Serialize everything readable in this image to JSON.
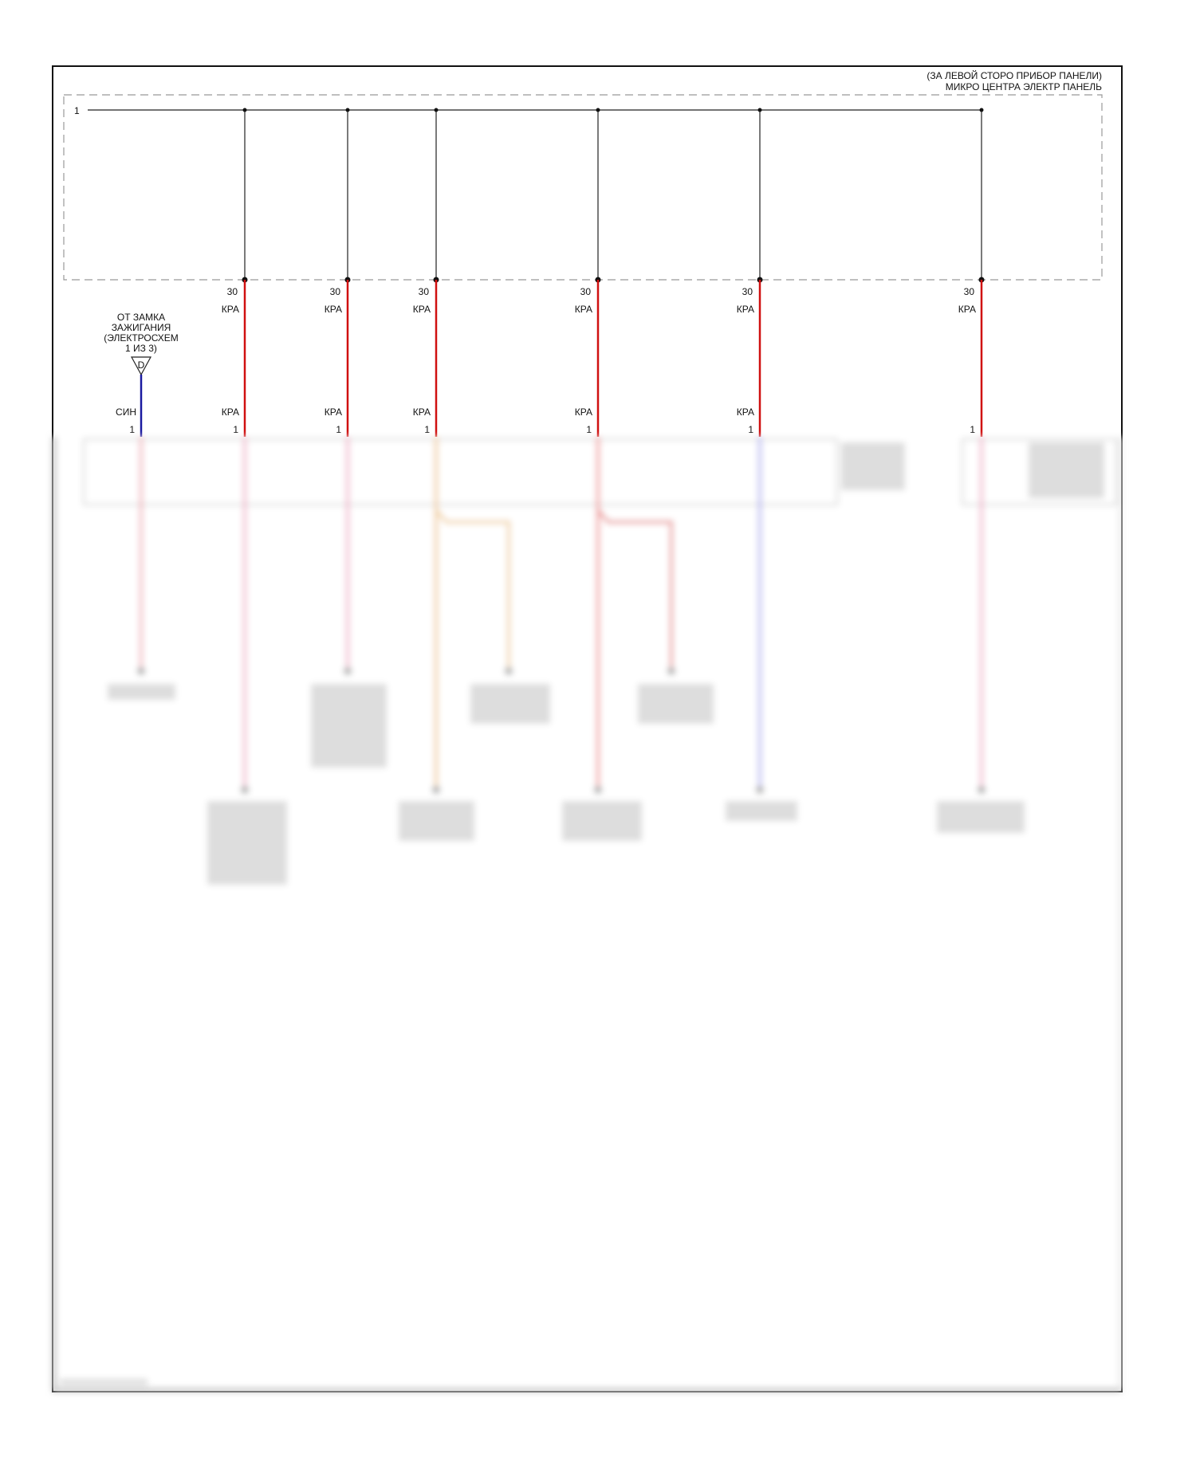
{
  "header": {
    "location_line": "(ЗА ЛЕВОЙ СТОРО ПРИБОР ПАНЕЛИ)",
    "component_line": "МИКРО ЦЕНТРА ЭЛЕКТР ПАНЕЛЬ"
  },
  "bus": {
    "pin": "1"
  },
  "source": {
    "label_lines": [
      "ОТ ЗАМКА",
      "ЗАЖИГАНИЯ",
      "(ЭЛЕКТРОСХЕМ",
      "1 ИЗ 3)"
    ],
    "connector_letter": "D",
    "wire_color_label": "СИН",
    "pin": "1",
    "wire_color": "#1a1aa0"
  },
  "branches": [
    {
      "pin_top": "30",
      "wire_top": "КРА",
      "wire_bottom": "КРА",
      "pin_bottom": "1"
    },
    {
      "pin_top": "30",
      "wire_top": "КРА",
      "wire_bottom": "КРА",
      "pin_bottom": "1"
    },
    {
      "pin_top": "30",
      "wire_top": "КРА",
      "wire_bottom": "КРА",
      "pin_bottom": "1"
    },
    {
      "pin_top": "30",
      "wire_top": "КРА",
      "wire_bottom": "КРА",
      "pin_bottom": "1"
    },
    {
      "pin_top": "30",
      "wire_top": "КРА",
      "wire_bottom": "КРА",
      "pin_bottom": "1"
    },
    {
      "pin_top": "30",
      "wire_top": "КРА",
      "wire_bottom": "",
      "pin_bottom": "1"
    }
  ],
  "colors": {
    "red_wire": "#d01010",
    "blue_wire": "#1a1aa0",
    "frame": "#111111"
  }
}
